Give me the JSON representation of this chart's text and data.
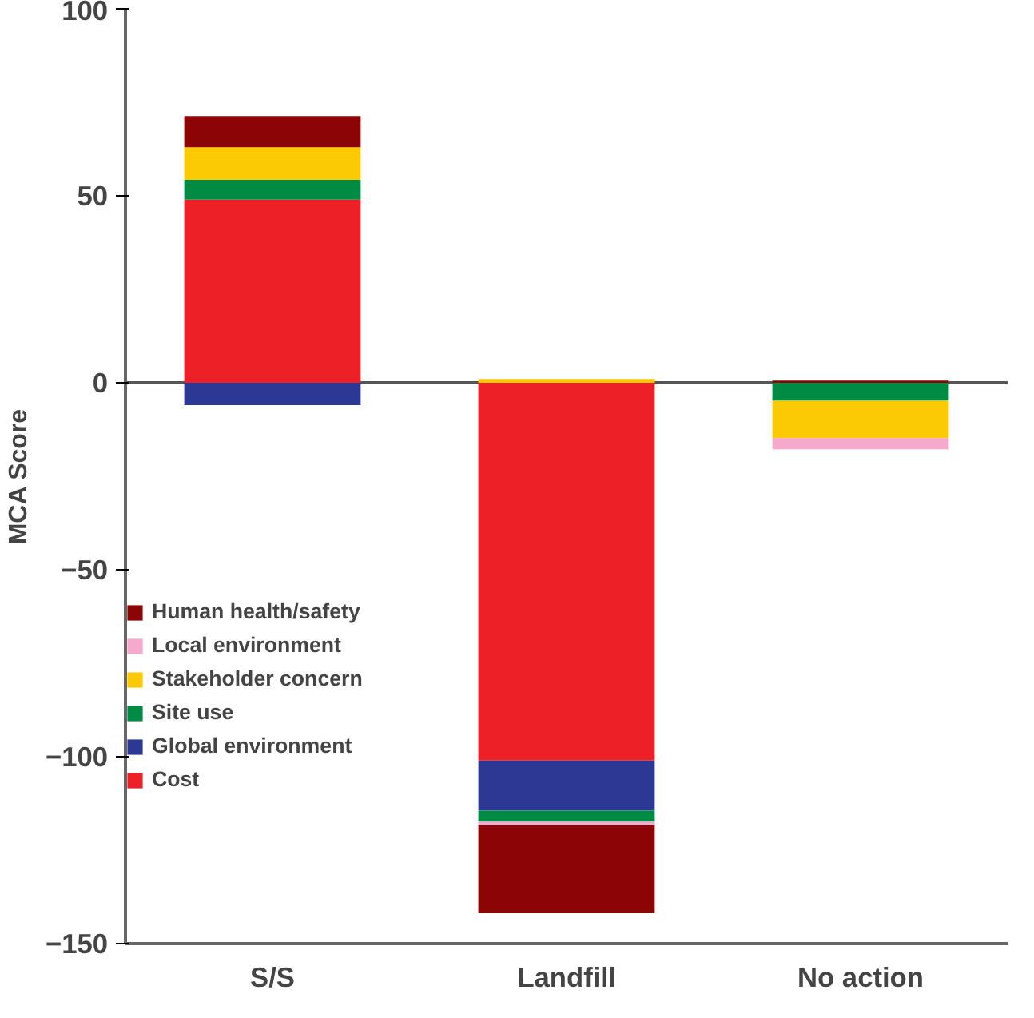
{
  "chart_data": {
    "type": "bar",
    "stacked": true,
    "ylabel": "MCA Score",
    "categories": [
      "S/S",
      "Landfill",
      "No action"
    ],
    "series": [
      {
        "name": "Cost",
        "color": "#ed1f27",
        "values": [
          49,
          -101,
          0
        ]
      },
      {
        "name": "Global environment",
        "color": "#2b3894",
        "values": [
          -6,
          -13.4,
          0
        ]
      },
      {
        "name": "Site use",
        "color": "#008b45",
        "values": [
          5.3,
          -3,
          -4.8
        ]
      },
      {
        "name": "Stakeholder concern",
        "color": "#fcc905",
        "values": [
          8.7,
          1,
          -10
        ]
      },
      {
        "name": "Local environment",
        "color": "#f7a9cb",
        "values": [
          0,
          -1,
          -3
        ]
      },
      {
        "name": "Human health/safety",
        "color": "#8b0505",
        "values": [
          8.3,
          -23.4,
          0.6
        ]
      }
    ],
    "ylim": [
      -150,
      100
    ],
    "yticks": [
      -150,
      -100,
      -50,
      0,
      50,
      100
    ],
    "ref_lines": [
      {
        "axis": "y",
        "value": 0,
        "color": "#555555"
      }
    ],
    "grid": false,
    "legend": "left"
  }
}
